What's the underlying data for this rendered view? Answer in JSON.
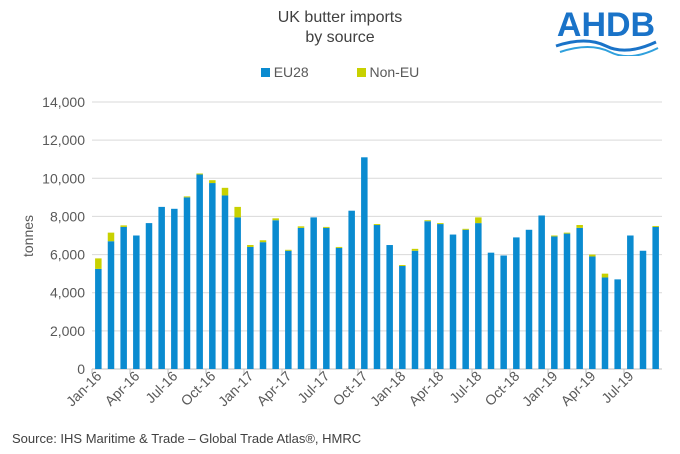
{
  "brand": "AHDB",
  "source": "Source: IHS Maritime & Trade – Global Trade Atlas®, HMRC",
  "colors": {
    "eu": "#0a8bd0",
    "noneu": "#c8d100",
    "grid": "#d9d9d9"
  },
  "chart_data": {
    "type": "bar",
    "stacked": true,
    "title_line1": "UK butter imports",
    "title_line2": "by source",
    "ylabel": "tonnes",
    "xlabel": "",
    "ylim": [
      0,
      14000
    ],
    "yticks": [
      "0",
      "2,000",
      "4,000",
      "6,000",
      "8,000",
      "10,000",
      "12,000",
      "14,000"
    ],
    "grid": true,
    "legend_position": "top",
    "xtick_labels": [
      "Jan-16",
      "Apr-16",
      "Jul-16",
      "Oct-16",
      "Jan-17",
      "Apr-17",
      "Jul-17",
      "Oct-17",
      "Jan-18",
      "Apr-18",
      "Jul-18",
      "Oct-18",
      "Jan-19",
      "Apr-19",
      "Jul-19"
    ],
    "categories": [
      "Jan-16",
      "Feb-16",
      "Mar-16",
      "Apr-16",
      "May-16",
      "Jun-16",
      "Jul-16",
      "Aug-16",
      "Sep-16",
      "Oct-16",
      "Nov-16",
      "Dec-16",
      "Jan-17",
      "Feb-17",
      "Mar-17",
      "Apr-17",
      "May-17",
      "Jun-17",
      "Jul-17",
      "Aug-17",
      "Sep-17",
      "Oct-17",
      "Nov-17",
      "Dec-17",
      "Jan-18",
      "Feb-18",
      "Mar-18",
      "Apr-18",
      "May-18",
      "Jun-18",
      "Jul-18",
      "Aug-18",
      "Sep-18",
      "Oct-18",
      "Nov-18",
      "Dec-18",
      "Jan-19",
      "Feb-19",
      "Mar-19",
      "Apr-19",
      "May-19",
      "Jun-19",
      "Jul-19",
      "Aug-19",
      "Sep-19"
    ],
    "series": [
      {
        "name": "EU28",
        "values": [
          5250,
          6700,
          7450,
          7000,
          7650,
          8500,
          8400,
          9000,
          10200,
          9750,
          9100,
          7950,
          6400,
          6650,
          7800,
          6200,
          7400,
          7950,
          7400,
          6350,
          8300,
          11100,
          7550,
          6500,
          5400,
          6200,
          7750,
          7600,
          7050,
          7300,
          7650,
          6100,
          5950,
          6900,
          7300,
          8050,
          6950,
          7100,
          7400,
          5900,
          4800,
          4700,
          7000,
          6200,
          7450
        ]
      },
      {
        "name": "Non-EU",
        "values": [
          550,
          450,
          80,
          0,
          0,
          0,
          0,
          50,
          50,
          150,
          400,
          550,
          100,
          100,
          100,
          50,
          80,
          0,
          50,
          50,
          0,
          0,
          50,
          0,
          50,
          100,
          50,
          50,
          0,
          50,
          300,
          0,
          0,
          0,
          0,
          0,
          50,
          50,
          150,
          100,
          200,
          0,
          0,
          0,
          50
        ]
      }
    ]
  }
}
